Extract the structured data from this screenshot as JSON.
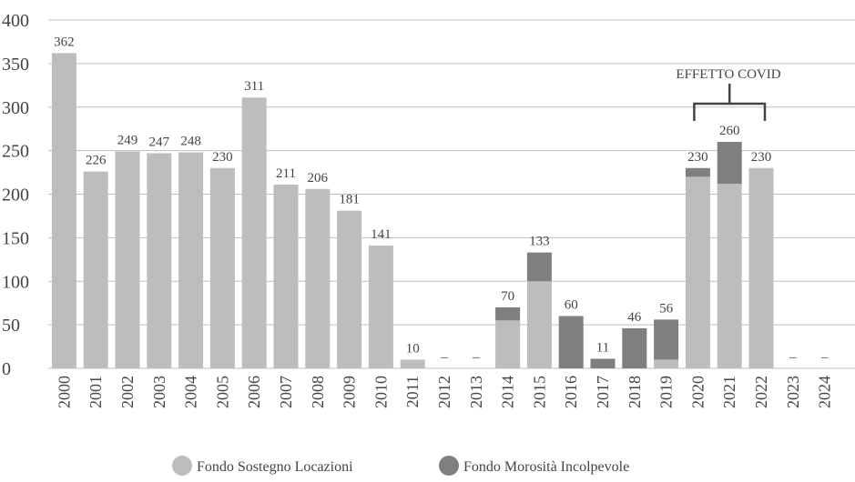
{
  "chart_data": {
    "type": "stacked-bar",
    "categories": [
      "2000",
      "2001",
      "2002",
      "2003",
      "2004",
      "2005",
      "2006",
      "2007",
      "2008",
      "2009",
      "2010",
      "2011",
      "2012",
      "2013",
      "2014",
      "2015",
      "2016",
      "2017",
      "2018",
      "2019",
      "2020",
      "2021",
      "2022",
      "2023",
      "2024"
    ],
    "series": [
      {
        "name": "Fondo Sostegno Locazioni",
        "color": "#bdbdbd",
        "values": [
          362,
          226,
          249,
          247,
          248,
          230,
          311,
          211,
          206,
          181,
          141,
          10,
          null,
          null,
          55,
          100,
          null,
          null,
          null,
          10,
          220,
          212,
          230,
          null,
          null
        ]
      },
      {
        "name": "Fondo Morosità Incolpevole",
        "color": "#7f7f7f",
        "values": [
          null,
          null,
          null,
          null,
          null,
          null,
          null,
          null,
          null,
          null,
          null,
          null,
          null,
          null,
          15,
          33,
          60,
          11,
          46,
          46,
          10,
          48,
          null,
          null,
          null
        ]
      }
    ],
    "value_labels": [
      "362",
      "226",
      "249",
      "247",
      "248",
      "230",
      "311",
      "211",
      "206",
      "181",
      "141",
      "10",
      "–",
      "–",
      "70",
      "133",
      "60",
      "11",
      "46",
      "56",
      "230",
      "260",
      "230",
      "–",
      "–"
    ],
    "annotation": "EFFETTO COVID",
    "ylim": [
      0,
      400
    ],
    "yticks": [
      0,
      50,
      100,
      150,
      200,
      250,
      300,
      350,
      400
    ],
    "grid": true
  }
}
